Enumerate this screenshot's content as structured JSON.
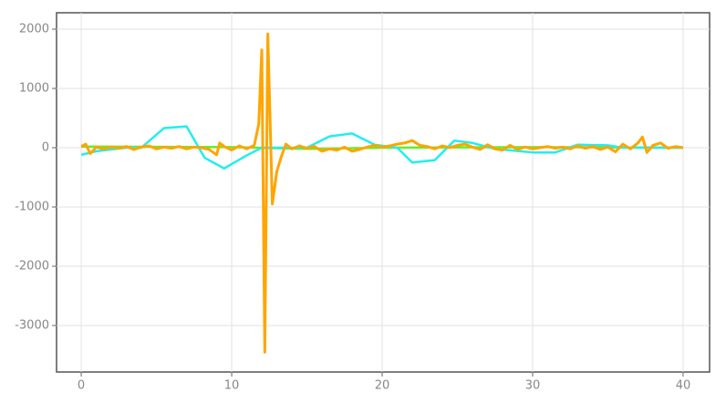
{
  "chart_data": {
    "type": "line",
    "xlim": [
      -1.64,
      41.76
    ],
    "ylim": [
      -3785,
      2277
    ],
    "xticks": [
      0,
      10,
      20,
      30,
      40
    ],
    "yticks": [
      -3000,
      -2000,
      -1000,
      0,
      1000,
      2000
    ],
    "grid": true,
    "series": [
      {
        "color": "#66ee22",
        "x": [
          0,
          10,
          15,
          20,
          30,
          40
        ],
        "values": [
          20,
          10,
          -20,
          0,
          10,
          0
        ]
      },
      {
        "color": "#22eeee",
        "x": [
          0,
          1,
          2,
          3,
          4,
          5.5,
          7,
          8.2,
          9.5,
          11,
          12,
          13,
          14,
          15,
          16.5,
          18,
          19.5,
          21,
          22,
          23.5,
          24.8,
          26,
          27.5,
          30,
          31.5,
          33,
          35,
          36,
          40
        ],
        "values": [
          -120,
          -60,
          -30,
          0,
          0,
          330,
          360,
          -170,
          -350,
          -130,
          0,
          0,
          0,
          0,
          190,
          240,
          50,
          0,
          -250,
          -210,
          120,
          80,
          -20,
          -80,
          -80,
          50,
          40,
          0,
          0
        ]
      },
      {
        "color": "#ffa500",
        "x": [
          0,
          0.3,
          0.6,
          1,
          1.5,
          2,
          2.5,
          3,
          3.5,
          4,
          4.5,
          5,
          5.5,
          6,
          6.5,
          7,
          7.5,
          8,
          8.5,
          9,
          9.2,
          9.5,
          10,
          10.5,
          11,
          11.5,
          11.8,
          12.0,
          12.2,
          12.4,
          12.7,
          13.0,
          13.3,
          13.6,
          14,
          14.5,
          15,
          15.5,
          16,
          16.5,
          17,
          17.5,
          18,
          18.5,
          19,
          19.5,
          20,
          20.5,
          21,
          21.5,
          22,
          22.5,
          23,
          23.5,
          24,
          24.5,
          25,
          25.5,
          26,
          26.5,
          27,
          27.5,
          28,
          28.5,
          29,
          29.5,
          30,
          30.5,
          31,
          31.5,
          32,
          32.5,
          33,
          33.5,
          34,
          34.5,
          35,
          35.5,
          36,
          36.5,
          37,
          37.3,
          37.6,
          38,
          38.5,
          39,
          39.5,
          40
        ],
        "values": [
          20,
          60,
          -100,
          10,
          -20,
          10,
          -10,
          20,
          -30,
          10,
          30,
          -20,
          10,
          -10,
          20,
          -20,
          10,
          0,
          -30,
          -120,
          80,
          20,
          -40,
          30,
          -20,
          40,
          400,
          1650,
          -3450,
          1920,
          -950,
          -400,
          -150,
          60,
          -20,
          30,
          -10,
          20,
          -60,
          -20,
          -40,
          10,
          -60,
          -30,
          10,
          40,
          10,
          30,
          60,
          80,
          120,
          40,
          20,
          -20,
          30,
          0,
          40,
          60,
          10,
          -30,
          50,
          -20,
          -40,
          40,
          -30,
          10,
          -20,
          0,
          20,
          -10,
          10,
          -20,
          30,
          -10,
          20,
          -30,
          10,
          -70,
          60,
          -20,
          80,
          180,
          -80,
          40,
          80,
          -10,
          20,
          0
        ]
      }
    ]
  }
}
